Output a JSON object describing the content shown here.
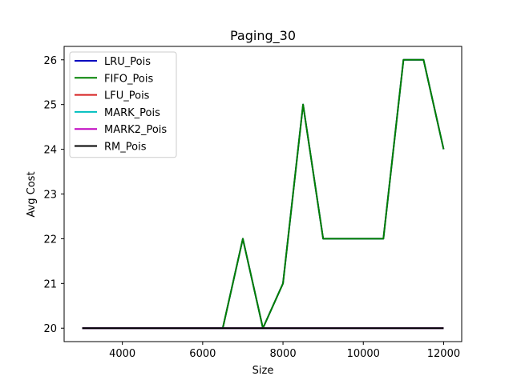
{
  "chart_data": {
    "type": "line",
    "title": "Paging_30",
    "xlabel": "Size",
    "ylabel": "Avg Cost",
    "xlim": [
      2550,
      12450
    ],
    "ylim": [
      19.7,
      26.3
    ],
    "xticks": [
      4000,
      6000,
      8000,
      10000,
      12000
    ],
    "yticks": [
      20,
      21,
      22,
      23,
      24,
      25,
      26
    ],
    "grid": false,
    "legend_position": "upper-left",
    "x": [
      3000,
      3500,
      4000,
      4500,
      5000,
      5500,
      6000,
      6500,
      7000,
      7500,
      8000,
      8500,
      9000,
      9500,
      10000,
      10500,
      11000,
      11500,
      12000
    ],
    "series": [
      {
        "name": "LRU_Pois",
        "color": "#0000bf",
        "values": [
          20,
          20,
          20,
          20,
          20,
          20,
          20,
          20,
          22,
          20,
          21,
          25,
          22,
          22,
          22,
          22,
          26,
          26,
          24
        ]
      },
      {
        "name": "FIFO_Pois",
        "color": "#008000",
        "values": [
          20,
          20,
          20,
          20,
          20,
          20,
          20,
          20,
          22,
          20,
          21,
          25,
          22,
          22,
          22,
          22,
          26,
          26,
          24
        ]
      },
      {
        "name": "LFU_Pois",
        "color": "#d62020",
        "values": [
          20,
          20,
          20,
          20,
          20,
          20,
          20,
          20,
          20,
          20,
          20,
          20,
          20,
          20,
          20,
          20,
          20,
          20,
          20
        ]
      },
      {
        "name": "MARK_Pois",
        "color": "#00bfbf",
        "values": [
          20,
          20,
          20,
          20,
          20,
          20,
          20,
          20,
          20,
          20,
          20,
          20,
          20,
          20,
          20,
          20,
          20,
          20,
          20
        ]
      },
      {
        "name": "MARK2_Pois",
        "color": "#bf00bf",
        "values": [
          20,
          20,
          20,
          20,
          20,
          20,
          20,
          20,
          20,
          20,
          20,
          20,
          20,
          20,
          20,
          20,
          20,
          20,
          20
        ]
      },
      {
        "name": "RM_Pois",
        "color": "#000000",
        "values": [
          20,
          20,
          20,
          20,
          20,
          20,
          20,
          20,
          20,
          20,
          20,
          20,
          20,
          20,
          20,
          20,
          20,
          20,
          20
        ]
      }
    ]
  }
}
